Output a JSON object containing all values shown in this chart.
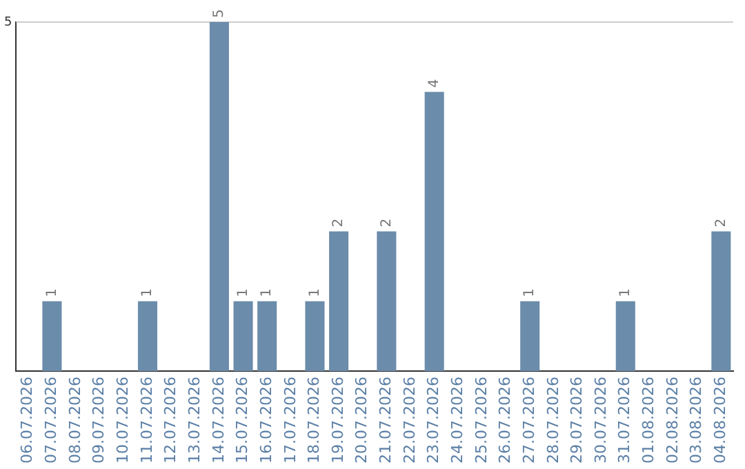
{
  "chart_data": {
    "type": "bar",
    "categories": [
      "06.07.2026",
      "07.07.2026",
      "08.07.2026",
      "09.07.2026",
      "10.07.2026",
      "11.07.2026",
      "12.07.2026",
      "13.07.2026",
      "14.07.2026",
      "15.07.2026",
      "16.07.2026",
      "17.07.2026",
      "18.07.2026",
      "19.07.2026",
      "20.07.2026",
      "21.07.2026",
      "22.07.2026",
      "23.07.2026",
      "24.07.2026",
      "25.07.2026",
      "26.07.2026",
      "27.07.2026",
      "28.07.2026",
      "29.07.2026",
      "30.07.2026",
      "31.07.2026",
      "01.08.2026",
      "02.08.2026",
      "03.08.2026",
      "04.08.2026"
    ],
    "values": [
      0,
      1,
      0,
      0,
      0,
      1,
      0,
      0,
      5,
      1,
      1,
      0,
      1,
      2,
      0,
      2,
      0,
      4,
      0,
      0,
      0,
      1,
      0,
      0,
      0,
      1,
      0,
      0,
      0,
      2
    ],
    "value_labels": [
      null,
      "1",
      null,
      null,
      null,
      "1",
      null,
      null,
      "5",
      "1",
      "1",
      null,
      "1",
      "2",
      null,
      "2",
      null,
      "4",
      null,
      null,
      null,
      "1",
      null,
      null,
      null,
      "1",
      null,
      null,
      null,
      "2"
    ],
    "color": "#6b8cab",
    "ylim": [
      0,
      5
    ],
    "yticks": [
      5
    ],
    "grid": false,
    "legend": false,
    "ref_lines": [
      {
        "axis": "y",
        "value": 5,
        "color": "#cccccc"
      }
    ]
  }
}
